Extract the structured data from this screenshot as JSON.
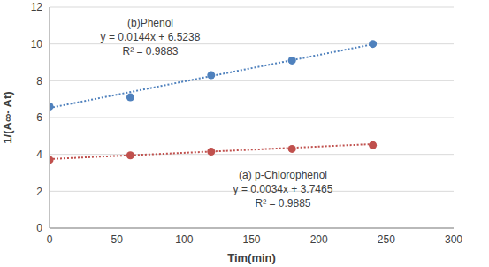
{
  "chart_data": {
    "type": "scatter",
    "x_label": "Tim(min)",
    "y_label": "1/(A∞- At)",
    "xlim": [
      0,
      300
    ],
    "xticks": [
      0,
      50,
      100,
      150,
      200,
      250,
      300
    ],
    "ylim": [
      0,
      12
    ],
    "yticks": [
      0,
      2,
      4,
      6,
      8,
      10,
      12
    ],
    "grid": "y",
    "series": [
      {
        "name": "(b)Phenol",
        "color": "#4f81bd",
        "marker": "circle",
        "x": [
          0,
          60,
          120,
          180,
          240
        ],
        "values": [
          6.6,
          7.1,
          8.3,
          9.1,
          10.0
        ],
        "trendline": {
          "slope": 0.0144,
          "intercept": 6.5238,
          "line_style": "dotted",
          "equation": "y = 0.0144x + 6.5238",
          "r2": "R² = 0.9883"
        }
      },
      {
        "name": "(a) p-Chlorophenol",
        "color": "#c0504d",
        "marker": "circle",
        "x": [
          0,
          60,
          120,
          180,
          240
        ],
        "values": [
          3.7,
          3.95,
          4.15,
          4.3,
          4.5
        ],
        "trendline": {
          "slope": 0.0034,
          "intercept": 3.7465,
          "line_style": "dotted",
          "equation": "y = 0.0034x + 3.7465",
          "r2": "R² = 0.9885"
        }
      }
    ]
  }
}
